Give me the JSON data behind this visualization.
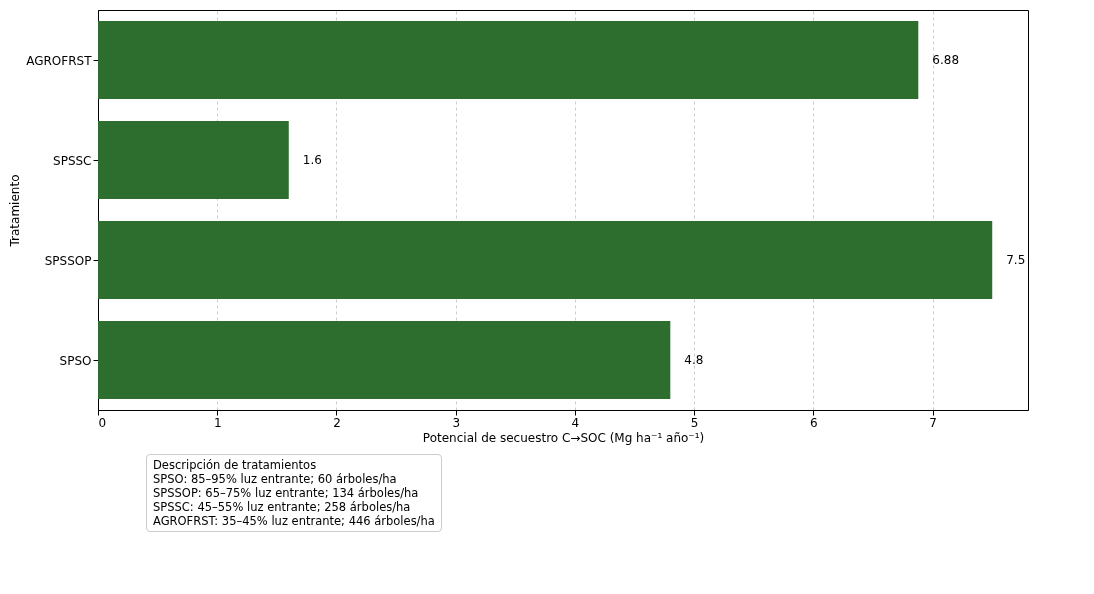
{
  "chart_data": {
    "type": "bar",
    "orientation": "horizontal",
    "xlabel": "Potencial de secuestro C→SOC (Mg ha⁻¹ año⁻¹)",
    "ylabel": "Tratamiento",
    "categories": [
      "AGROFRST",
      "SPSSC",
      "SPSSOP",
      "SPSO"
    ],
    "values": [
      6.88,
      1.6,
      7.5,
      4.8
    ],
    "color": "#2d6e2f",
    "xlim": [
      0,
      7.8
    ],
    "xticks": [
      0,
      1,
      2,
      3,
      4,
      5,
      6,
      7
    ],
    "grid": "x",
    "data_labels": true,
    "annotations": [
      "Descripción de tratamientos",
      "SPSO: 85–95% luz entrante; 60 árboles/ha",
      "SPSSOP: 65–75% luz entrante; 134 árboles/ha",
      "SPSSC: 45–55% luz entrante; 258 árboles/ha",
      "AGROFRST: 35–45% luz entrante; 446 árboles/ha"
    ]
  }
}
